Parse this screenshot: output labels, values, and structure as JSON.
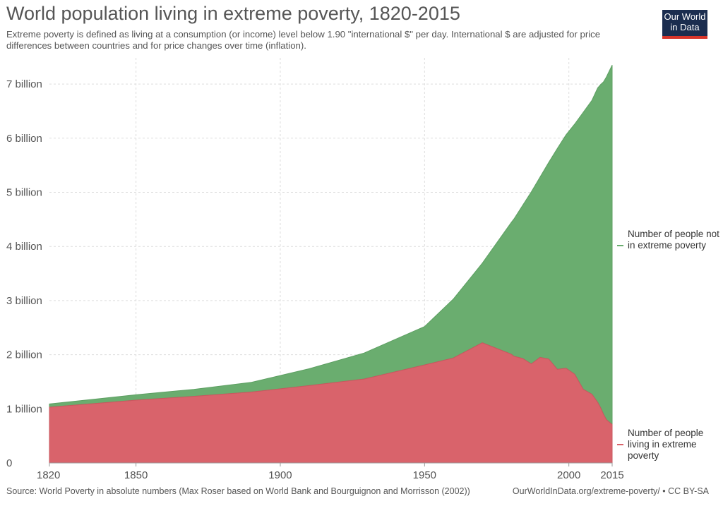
{
  "header": {
    "title": "World population living in extreme poverty, 1820-2015",
    "subtitle": "Extreme poverty is defined as living at a consumption (or income) level below 1.90 \"international $\" per day. International $ are adjusted for price differences between countries and for price changes over time (inflation).",
    "logo_line1": "Our World",
    "logo_line2": "in Data"
  },
  "footer": {
    "source": "Source: World Poverty in absolute numbers (Max Roser based on World Bank and Bourguignon and Morrisson (2002))",
    "credit": "OurWorldInData.org/extreme-poverty/ • CC BY-SA"
  },
  "chart_data": {
    "type": "area",
    "stacked": true,
    "title": "World population living in extreme poverty, 1820-2015",
    "x_ticks": [
      1820,
      1850,
      1900,
      1950,
      2000,
      2015
    ],
    "x_tick_labels": [
      "1820",
      "1850",
      "1900",
      "1950",
      "2000",
      "2015"
    ],
    "y_ticks": [
      0,
      1,
      2,
      3,
      4,
      5,
      6,
      7
    ],
    "y_tick_labels": [
      "0",
      "1 billion",
      "2 billion",
      "3 billion",
      "4 billion",
      "5 billion",
      "6 billion",
      "7 billion"
    ],
    "xlim": [
      1820,
      2015
    ],
    "ylim": [
      0,
      7.4
    ],
    "grid": "dotted",
    "legend_position": "right",
    "x": [
      1820,
      1850,
      1870,
      1890,
      1910,
      1929,
      1950,
      1960,
      1970,
      1980,
      1981,
      1984,
      1987,
      1990,
      1993,
      1996,
      1999,
      2002,
      2005,
      2008,
      2010,
      2011,
      2012,
      2013,
      2015
    ],
    "series": [
      {
        "name": "Number of people living in extreme poverty",
        "color": "#d9636b",
        "values": [
          1.03,
          1.16,
          1.23,
          1.31,
          1.43,
          1.55,
          1.81,
          1.94,
          2.22,
          2.01,
          1.97,
          1.93,
          1.83,
          1.95,
          1.92,
          1.73,
          1.75,
          1.64,
          1.36,
          1.27,
          1.12,
          1.02,
          0.9,
          0.8,
          0.71
        ]
      },
      {
        "name": "Number of people not in extreme poverty",
        "color": "#6aad6f",
        "values": [
          0.06,
          0.1,
          0.13,
          0.18,
          0.31,
          0.48,
          0.71,
          1.09,
          1.47,
          2.43,
          2.54,
          2.83,
          3.18,
          3.33,
          3.63,
          4.08,
          4.31,
          4.62,
          5.12,
          5.43,
          5.81,
          5.97,
          6.14,
          6.33,
          6.64
        ]
      }
    ],
    "legend": [
      {
        "label": "Number of people not in extreme poverty",
        "color": "#6aad6f"
      },
      {
        "label": "Number of people living in extreme poverty",
        "color": "#d9636b"
      }
    ]
  }
}
